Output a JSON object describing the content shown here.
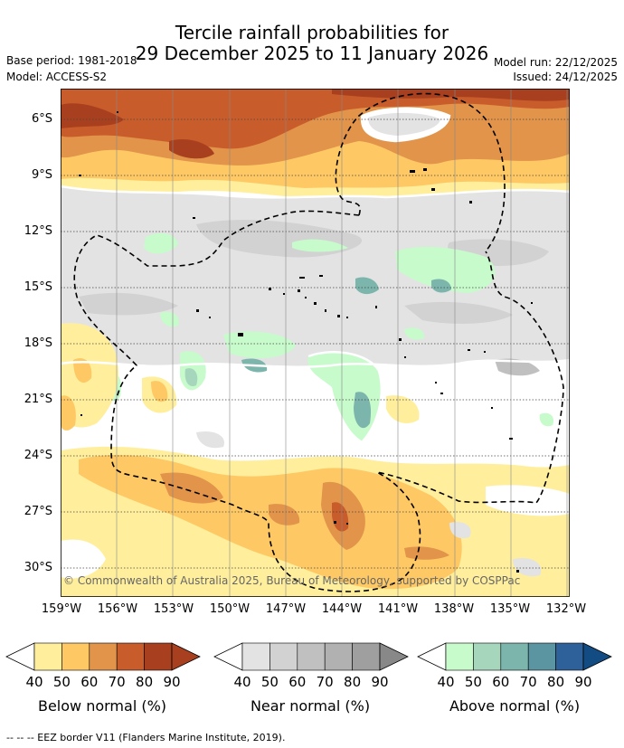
{
  "title": {
    "line1": "Tercile rainfall probabilities for",
    "line2": "29 December 2025 to 11 January 2026"
  },
  "meta": {
    "base_period": "Base period: 1981-2018",
    "model": "Model: ACCESS-S2",
    "model_run": "Model run: 22/12/2025",
    "issued": "Issued: 24/12/2025"
  },
  "map": {
    "credit": "© Commonwealth of Australia 2025, Bureau of Meteorology, supported by COSPPac",
    "lat_labels": [
      "6°S",
      "9°S",
      "12°S",
      "15°S",
      "18°S",
      "21°S",
      "24°S",
      "27°S",
      "30°S"
    ],
    "lon_labels": [
      "159°W",
      "156°W",
      "153°W",
      "150°W",
      "147°W",
      "144°W",
      "141°W",
      "138°W",
      "135°W",
      "132°W"
    ]
  },
  "colorbars": [
    {
      "name": "Below normal (%)",
      "levels": [
        "40",
        "50",
        "60",
        "70",
        "80",
        "90"
      ],
      "colors": [
        "#ffef9d",
        "#fec965",
        "#e1944a",
        "#c95c2b",
        "#a8401f",
        "#a8401f"
      ]
    },
    {
      "name": "Near normal (%)",
      "levels": [
        "40",
        "50",
        "60",
        "70",
        "80",
        "90"
      ],
      "colors": [
        "#e3e3e3",
        "#d2d2d2",
        "#c0c0c0",
        "#b1b1b1",
        "#9f9f9f",
        "#888888"
      ]
    },
    {
      "name": "Above normal (%)",
      "levels": [
        "40",
        "50",
        "60",
        "70",
        "80",
        "90"
      ],
      "colors": [
        "#c7fbcb",
        "#a6d7bc",
        "#7cb5ac",
        "#5b95a2",
        "#2e6199",
        "#134c82"
      ]
    }
  ],
  "legend": {
    "eez": "--  --  -- EEZ border V11 (Flanders Marine Institute, 2019)."
  }
}
